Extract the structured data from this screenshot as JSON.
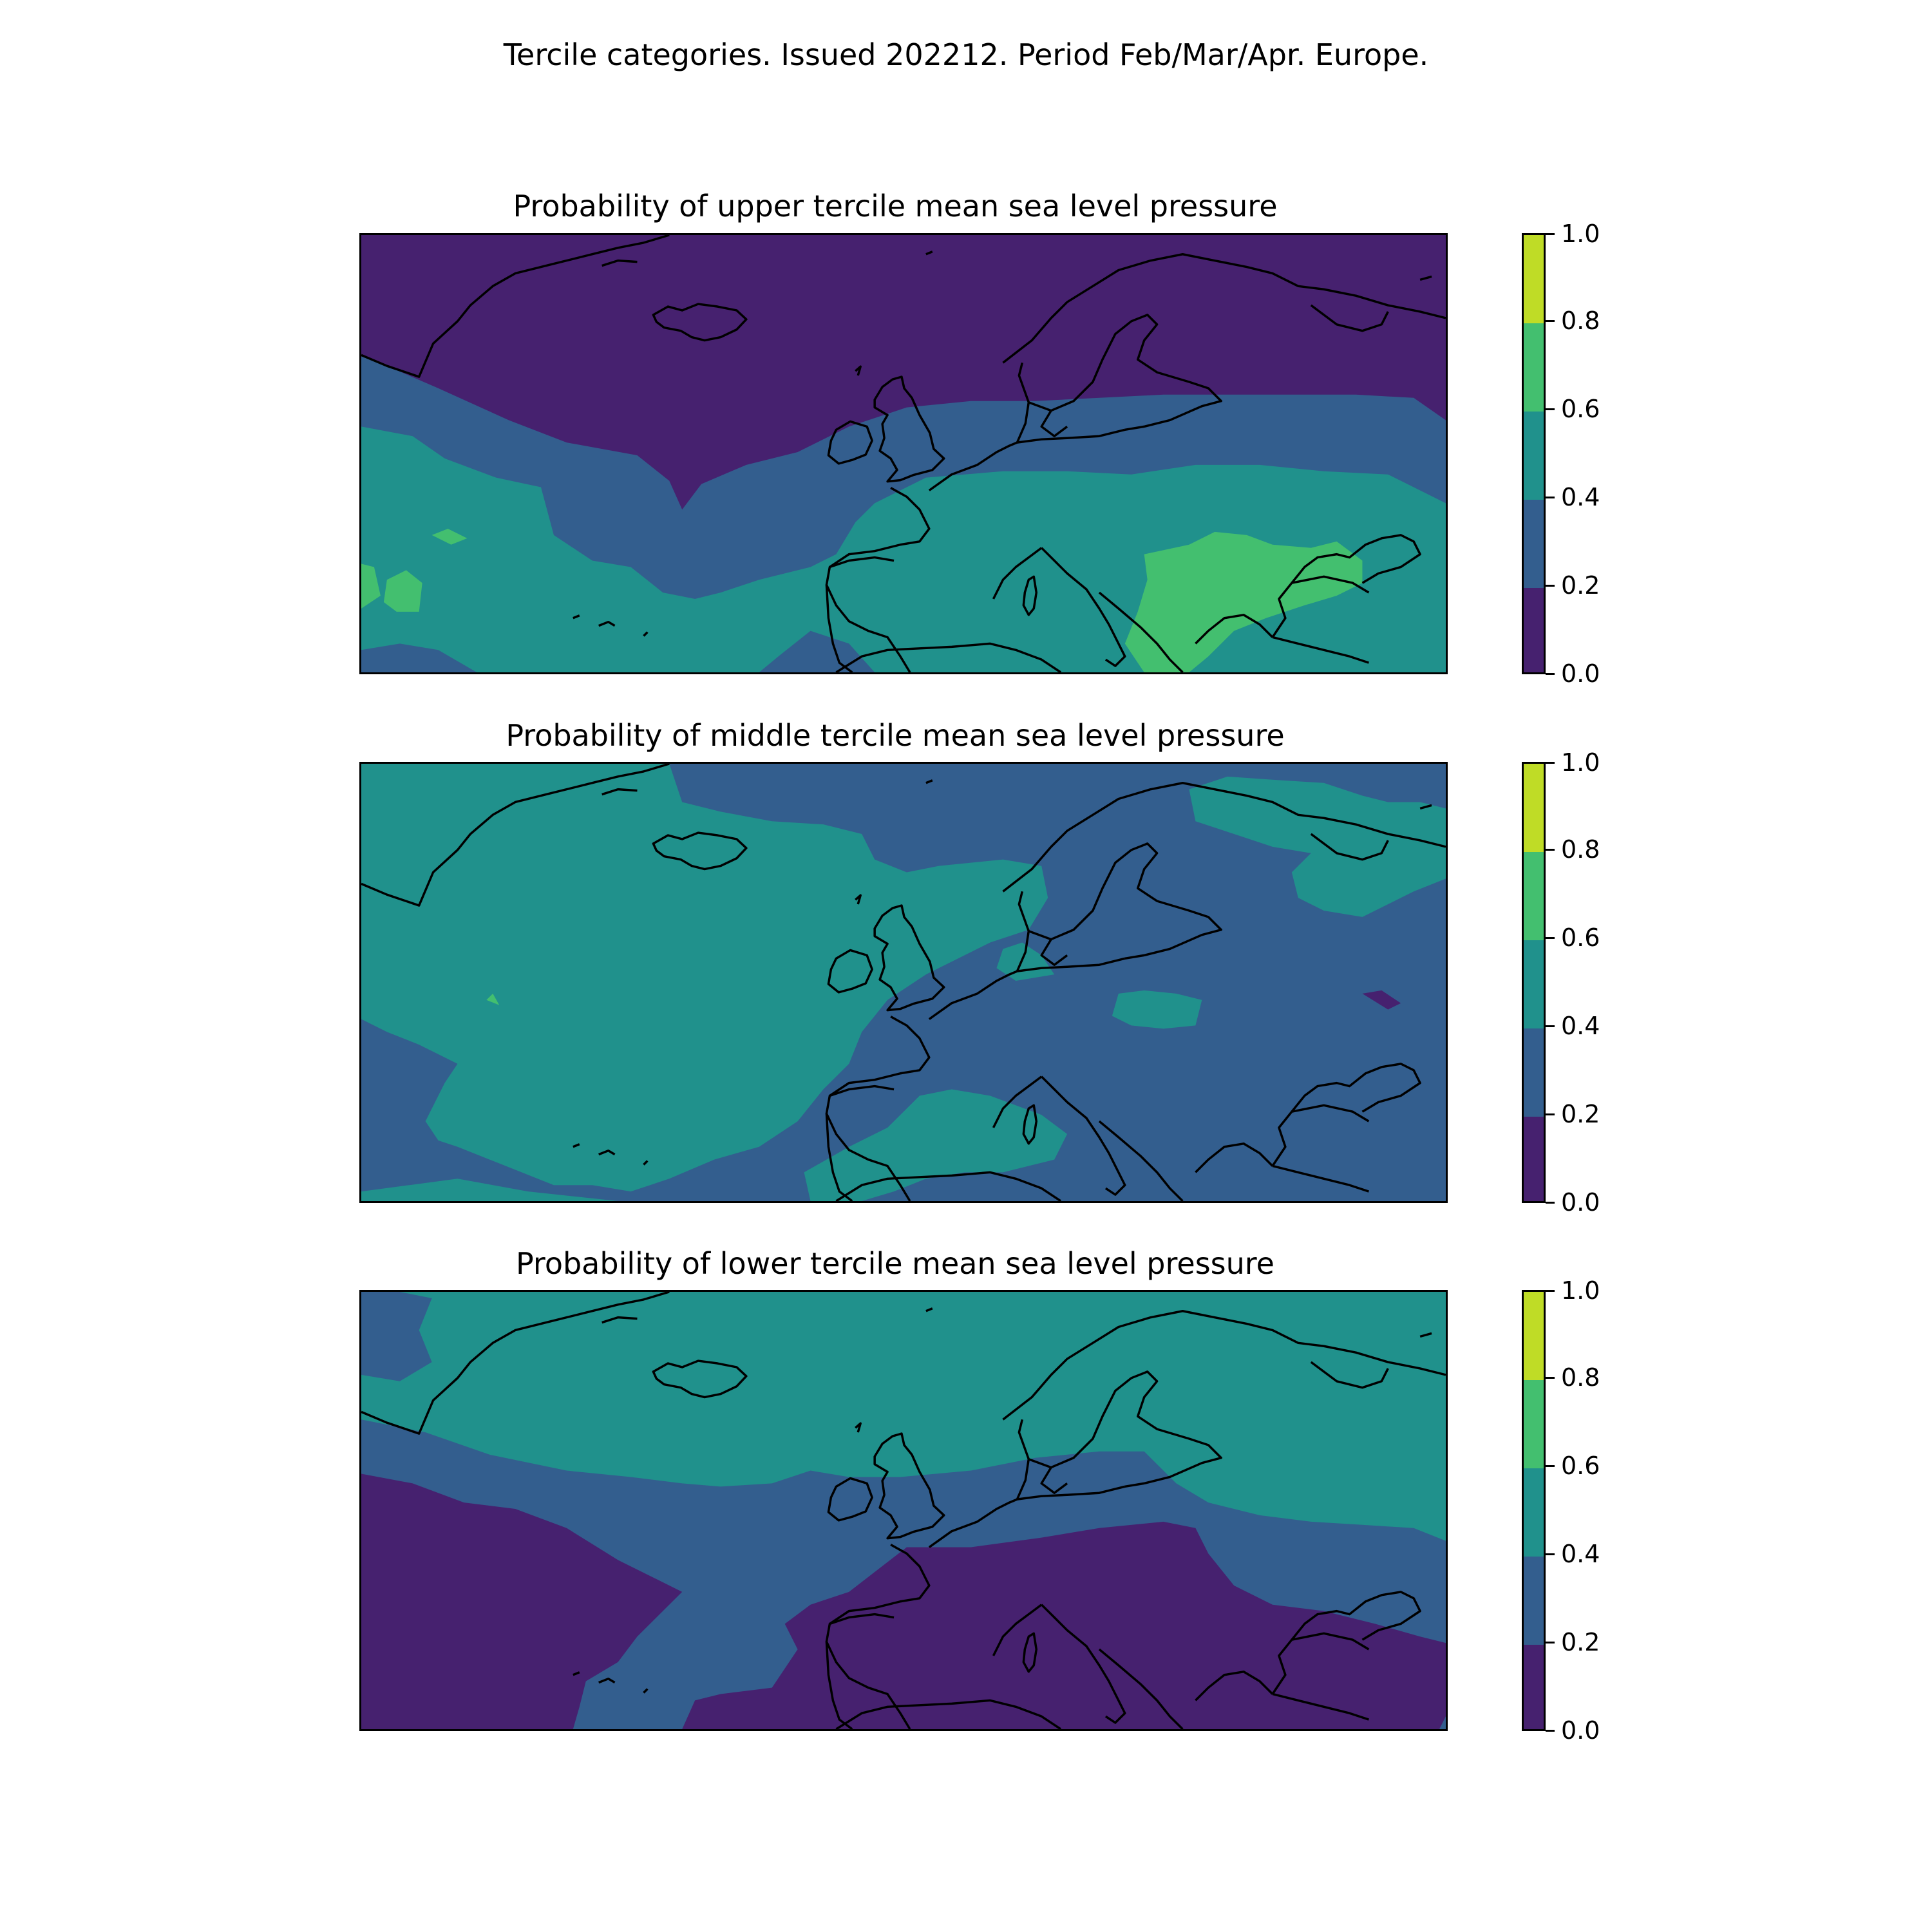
{
  "figure": {
    "title": "Tercile categories. Issued 202212. Period Feb/Mar/Apr. Europe."
  },
  "palette": {
    "levels": [
      {
        "range": [
          0.0,
          0.2
        ],
        "color": "#46216f"
      },
      {
        "range": [
          0.2,
          0.4
        ],
        "color": "#335e8e"
      },
      {
        "range": [
          0.4,
          0.6
        ],
        "color": "#20918c"
      },
      {
        "range": [
          0.6,
          0.8
        ],
        "color": "#43bf6f"
      },
      {
        "range": [
          0.8,
          1.0
        ],
        "color": "#bfdc26"
      }
    ],
    "coastline": "#000000"
  },
  "panels": [
    {
      "title": "Probability of upper tercile mean sea level pressure",
      "colorbar": {
        "ticks": [
          "0.0",
          "0.2",
          "0.4",
          "0.6",
          "0.8",
          "1.0"
        ]
      }
    },
    {
      "title": "Probability of middle tercile mean sea level pressure",
      "colorbar": {
        "ticks": [
          "0.0",
          "0.2",
          "0.4",
          "0.6",
          "0.8",
          "1.0"
        ]
      }
    },
    {
      "title": "Probability of lower tercile mean sea level pressure",
      "colorbar": {
        "ticks": [
          "0.0",
          "0.2",
          "0.4",
          "0.6",
          "0.8",
          "1.0"
        ]
      }
    }
  ]
}
